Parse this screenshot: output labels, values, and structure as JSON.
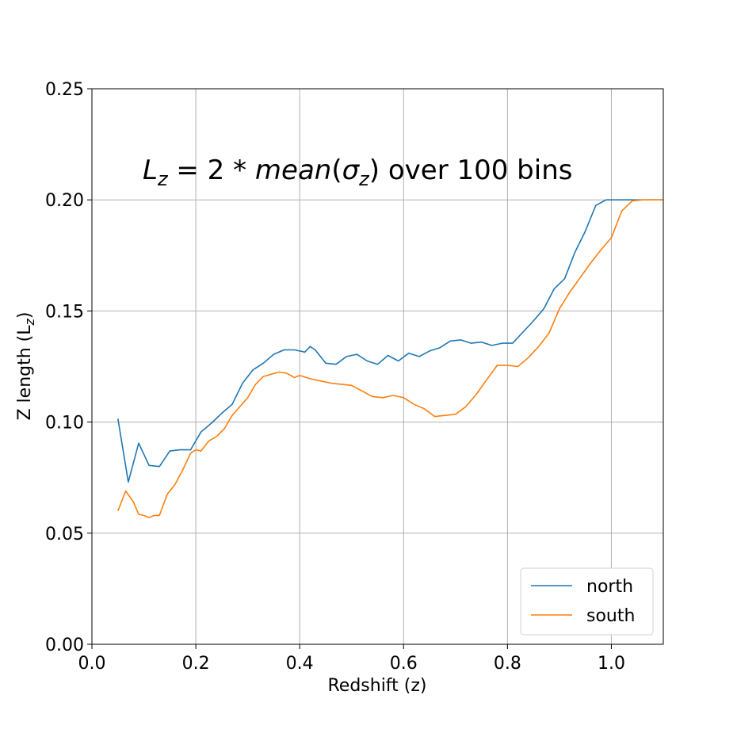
{
  "chart_data": {
    "type": "line",
    "title": "",
    "xlabel": "Redshift (z)",
    "ylabel": "Z length (L",
    "ylabel_sub": "z",
    "ylabel_close": ")",
    "xlim": [
      0.0,
      1.1
    ],
    "ylim": [
      0.0,
      0.25
    ],
    "x_ticks": [
      0.0,
      0.2,
      0.4,
      0.6,
      0.8,
      1.0
    ],
    "x_tick_labels": [
      "0.0",
      "0.2",
      "0.4",
      "0.6",
      "0.8",
      "1.0"
    ],
    "y_ticks": [
      0.0,
      0.05,
      0.1,
      0.15,
      0.2,
      0.25
    ],
    "y_tick_labels": [
      "0.00",
      "0.05",
      "0.10",
      "0.15",
      "0.20",
      "0.25"
    ],
    "grid": true,
    "legend_position": "lower-right",
    "annotation": {
      "L": "L",
      "sub_z": "z",
      "eq": " = 2 * ",
      "mean": "mean",
      "paren_open": "(",
      "sigma": "σ",
      "sub_z2": "z",
      "paren_close": ")",
      "rest": " over 100 bins"
    },
    "series": [
      {
        "name": "north",
        "color": "#1f77b4",
        "x": [
          0.05,
          0.07,
          0.09,
          0.11,
          0.13,
          0.15,
          0.17,
          0.19,
          0.21,
          0.23,
          0.25,
          0.27,
          0.29,
          0.31,
          0.33,
          0.35,
          0.37,
          0.39,
          0.41,
          0.42,
          0.43,
          0.45,
          0.47,
          0.49,
          0.51,
          0.53,
          0.55,
          0.57,
          0.59,
          0.61,
          0.63,
          0.65,
          0.67,
          0.69,
          0.71,
          0.73,
          0.75,
          0.77,
          0.79,
          0.81,
          0.83,
          0.85,
          0.87,
          0.89,
          0.91,
          0.93,
          0.95,
          0.97,
          0.99,
          1.01,
          1.03,
          1.05,
          1.07,
          1.09,
          1.1
        ],
        "y": [
          0.1015,
          0.073,
          0.0905,
          0.0805,
          0.08,
          0.087,
          0.0875,
          0.0875,
          0.0955,
          0.0995,
          0.104,
          0.108,
          0.1175,
          0.1235,
          0.1265,
          0.1305,
          0.1325,
          0.1325,
          0.1315,
          0.134,
          0.1325,
          0.1265,
          0.126,
          0.1295,
          0.1305,
          0.1275,
          0.126,
          0.13,
          0.1275,
          0.131,
          0.1295,
          0.132,
          0.1335,
          0.1365,
          0.137,
          0.1355,
          0.136,
          0.1345,
          0.1355,
          0.1355,
          0.1405,
          0.1455,
          0.151,
          0.16,
          0.1645,
          0.1765,
          0.186,
          0.1975,
          0.2,
          0.2,
          0.2,
          0.2,
          0.2,
          0.2,
          0.2
        ]
      },
      {
        "name": "south",
        "color": "#ff7f0e",
        "x": [
          0.05,
          0.065,
          0.08,
          0.09,
          0.1,
          0.11,
          0.12,
          0.13,
          0.145,
          0.16,
          0.175,
          0.19,
          0.2,
          0.21,
          0.225,
          0.24,
          0.255,
          0.27,
          0.285,
          0.3,
          0.315,
          0.33,
          0.345,
          0.36,
          0.375,
          0.39,
          0.4,
          0.42,
          0.44,
          0.46,
          0.48,
          0.5,
          0.52,
          0.54,
          0.56,
          0.58,
          0.6,
          0.62,
          0.64,
          0.66,
          0.68,
          0.7,
          0.72,
          0.74,
          0.76,
          0.78,
          0.8,
          0.82,
          0.84,
          0.86,
          0.88,
          0.9,
          0.92,
          0.94,
          0.96,
          0.98,
          1.0,
          1.02,
          1.04,
          1.06,
          1.08,
          1.1
        ],
        "y": [
          0.06,
          0.069,
          0.064,
          0.0585,
          0.058,
          0.057,
          0.058,
          0.058,
          0.0675,
          0.072,
          0.0785,
          0.086,
          0.0875,
          0.087,
          0.0915,
          0.0935,
          0.097,
          0.103,
          0.107,
          0.111,
          0.117,
          0.1205,
          0.1215,
          0.1225,
          0.122,
          0.12,
          0.121,
          0.1195,
          0.1185,
          0.1175,
          0.117,
          0.1165,
          0.114,
          0.1115,
          0.111,
          0.112,
          0.111,
          0.108,
          0.106,
          0.1025,
          0.103,
          0.1035,
          0.107,
          0.1125,
          0.119,
          0.1255,
          0.1255,
          0.125,
          0.129,
          0.134,
          0.14,
          0.151,
          0.1585,
          0.165,
          0.1715,
          0.1775,
          0.183,
          0.195,
          0.1995,
          0.2,
          0.2,
          0.2
        ]
      }
    ]
  }
}
